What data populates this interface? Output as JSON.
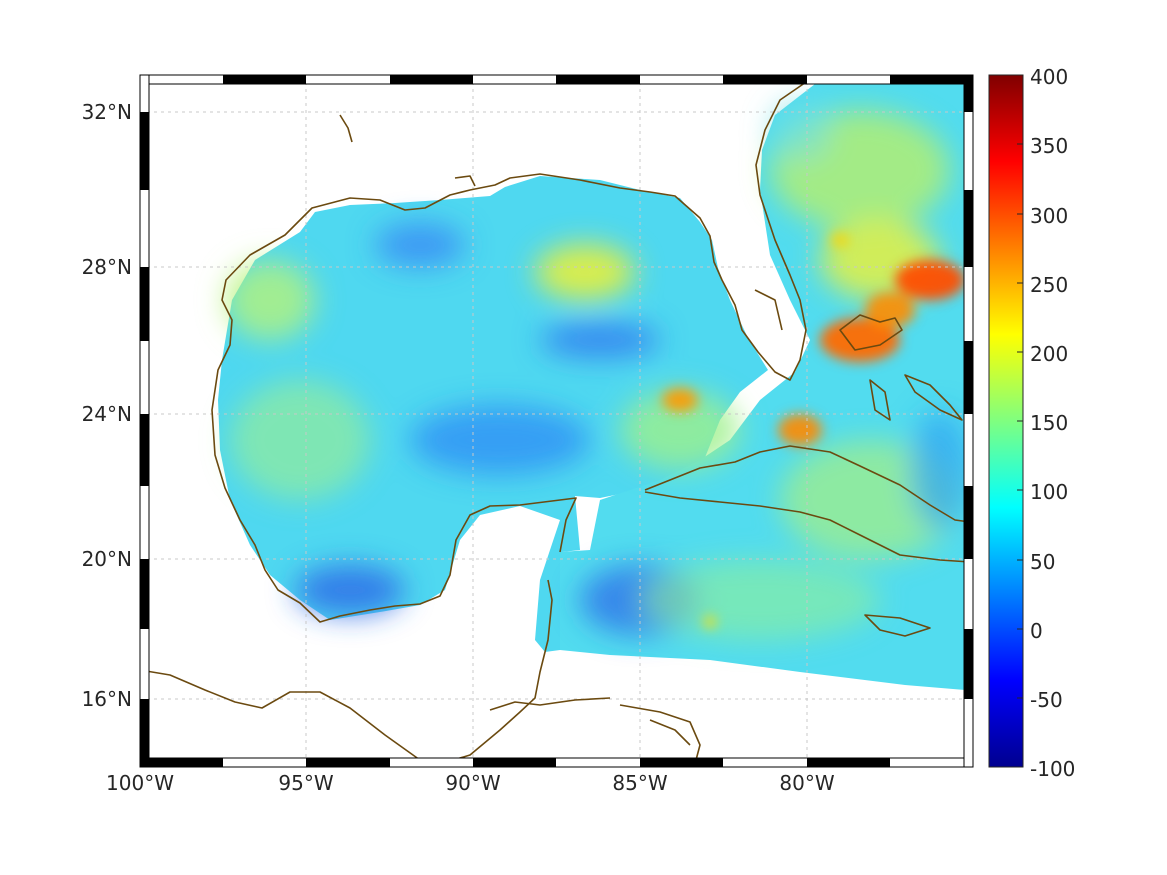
{
  "map": {
    "lon_ticks": [
      "100°W",
      "95°W",
      "90°W",
      "85°W",
      "80°W"
    ],
    "lat_ticks": [
      "32°N",
      "28°N",
      "24°N",
      "20°N",
      "16°N"
    ],
    "lon_range": [
      -100,
      -75
    ],
    "lat_range": [
      14.2,
      33
    ],
    "projection": "mercator",
    "grid": true,
    "frame_style": "alternating black-white",
    "coastline_color": "#6b4a10"
  },
  "colorbar": {
    "ticks": [
      "400",
      "350",
      "300",
      "250",
      "200",
      "150",
      "100",
      "50",
      "0",
      "-50",
      "-100"
    ],
    "range": [
      -100,
      400
    ],
    "colormap": "jet"
  }
}
